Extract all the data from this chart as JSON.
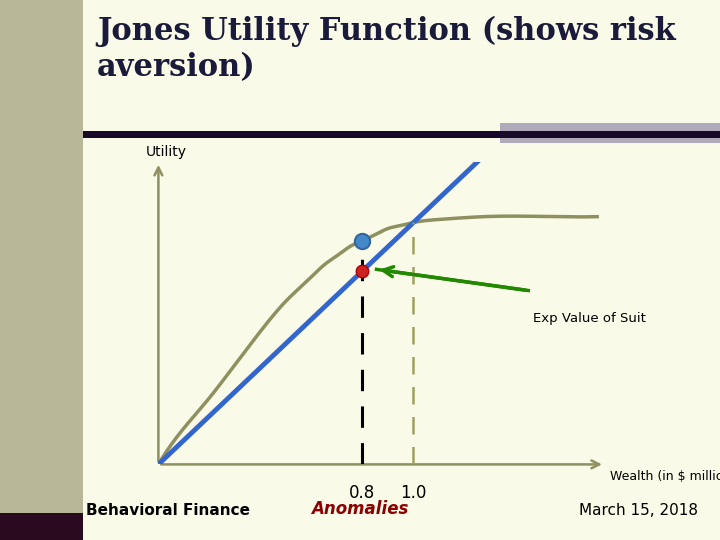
{
  "background_color": "#fafae8",
  "left_bar_color": "#b8b898",
  "left_bar_bottom_color": "#2a0a1e",
  "title": "Jones Utility Function (shows risk\naversion)",
  "title_fontsize": 22,
  "title_color": "#1a1a3a",
  "utility_label": "Utility",
  "xlabel": "Wealth (in $ millions)",
  "exp_value_label": "Exp Value of Suit",
  "bottom_left": "Behavioral Finance",
  "bottom_center": "Anomalies",
  "bottom_right": "March 15, 2018",
  "bottom_center_color": "#8b0000",
  "x_tick_08": "0.8",
  "x_tick_10": "1.0",
  "top_right_bar_color": "#b0aabb",
  "concave_color": "#8f9060",
  "linear_color": "#3366cc",
  "separator_line_color": "#1a0a2a",
  "axis_color": "#8f9060"
}
